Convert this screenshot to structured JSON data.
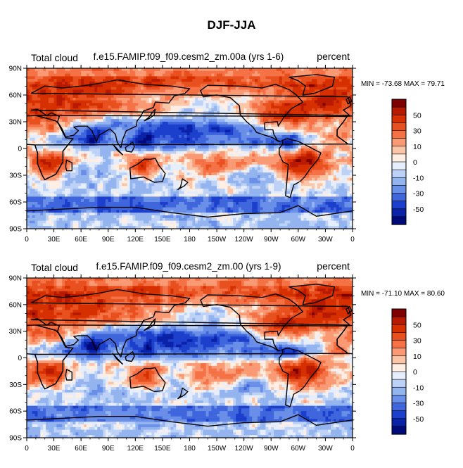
{
  "page_title": "DJF-JJA",
  "colorbar": {
    "levels": [
      -60,
      -50,
      -40,
      -30,
      -20,
      -10,
      -5,
      0,
      5,
      10,
      20,
      30,
      40,
      50,
      60
    ],
    "tick_labels": [
      "50",
      "30",
      "10",
      "0",
      "-10",
      "-30",
      "-50"
    ],
    "colors": [
      "#7f0000",
      "#b71a00",
      "#d73000",
      "#e8501f",
      "#f47246",
      "#f99a75",
      "#fbc5a8",
      "#feeee4",
      "#e6eefb",
      "#bdd2f6",
      "#94b4f0",
      "#6a8fe8",
      "#3f66dc",
      "#1c3fcc",
      "#0a22a8",
      "#000a7a"
    ]
  },
  "chart_data": [
    {
      "type": "heatmap",
      "title": "f.e15.FAMIP.f09_f09.cesm2_zm.00a (yrs 1-6)",
      "left_label": "Total cloud",
      "right_label": "percent",
      "stats": "MIN = -73.68 MAX =  79.71",
      "min": -73.68,
      "max": 79.71,
      "x_tick_labels": [
        "0",
        "30E",
        "60E",
        "90E",
        "120E",
        "150E",
        "180",
        "150W",
        "120W",
        "90W",
        "60W",
        "30W",
        "0"
      ],
      "y_tick_labels": [
        "90N",
        "60N",
        "30N",
        "0",
        "30S",
        "60S",
        "90S"
      ],
      "xlim": [
        0,
        360
      ],
      "ylim": [
        -90,
        90
      ]
    },
    {
      "type": "heatmap",
      "title": "f.e15.FAMIP.f09_f09.cesm2_zm.00 (yrs 1-9)",
      "left_label": "Total cloud",
      "right_label": "percent",
      "stats": "MIN = -71.10 MAX =  80.60",
      "min": -71.1,
      "max": 80.6,
      "x_tick_labels": [
        "0",
        "30E",
        "60E",
        "90E",
        "120E",
        "150E",
        "180",
        "150W",
        "120W",
        "90W",
        "60W",
        "30W",
        "0"
      ],
      "y_tick_labels": [
        "90N",
        "60N",
        "30N",
        "0",
        "30S",
        "60S",
        "90S"
      ],
      "xlim": [
        0,
        360
      ],
      "ylim": [
        -90,
        90
      ]
    }
  ]
}
